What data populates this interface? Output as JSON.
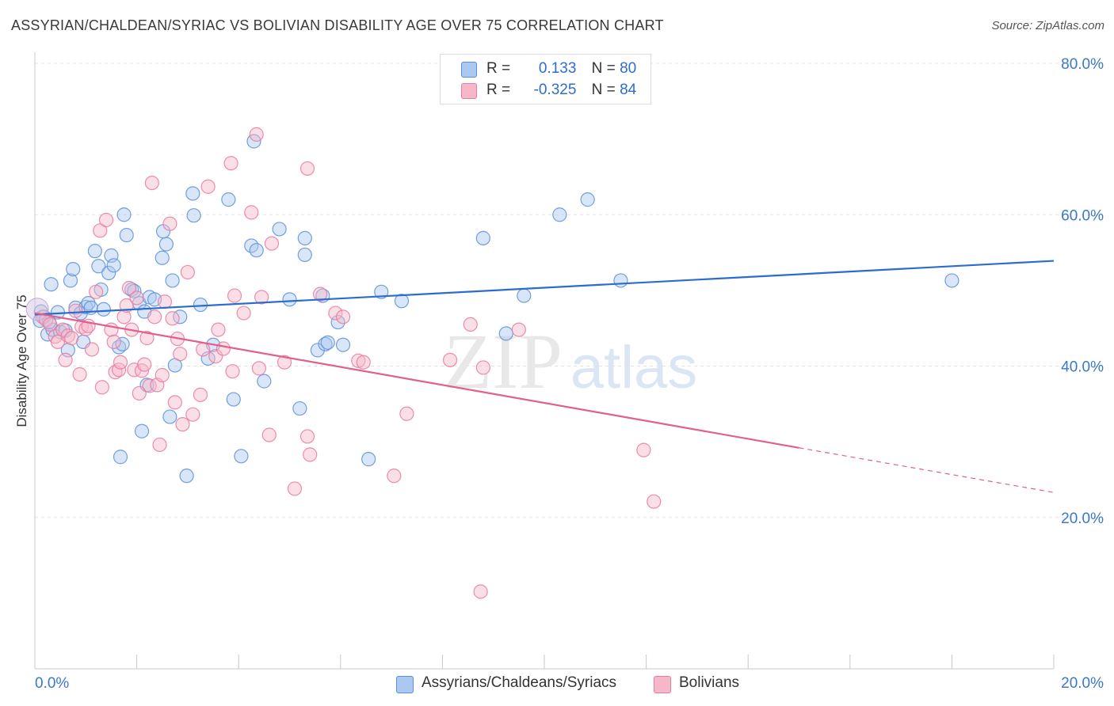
{
  "header": {
    "title": "ASSYRIAN/CHALDEAN/SYRIAC VS BOLIVIAN DISABILITY AGE OVER 75 CORRELATION CHART",
    "source": "Source: ZipAtlas.com"
  },
  "watermark": {
    "zip": "ZIP",
    "atlas": "atlas"
  },
  "stats": {
    "rows": [
      {
        "r_label": "R =",
        "r_value": "0.133",
        "n_label": "N =",
        "n_value": "80",
        "color": "#aac8f0"
      },
      {
        "r_label": "R =",
        "r_value": "-0.325",
        "n_label": "N =",
        "n_value": "84",
        "color": "#f6b7c8"
      }
    ]
  },
  "legend": {
    "items": [
      {
        "label": "Assyrians/Chaldeans/Syriacs",
        "color": "#aac8f0"
      },
      {
        "label": "Bolivians",
        "color": "#f6b7c8"
      }
    ]
  },
  "chart_data": {
    "type": "scatter",
    "xlabel": "",
    "ylabel": "Disability Age Over 75",
    "xlim": [
      0,
      20
    ],
    "ylim": [
      0,
      80
    ],
    "x_tick_labels": [
      "0.0%",
      "20.0%"
    ],
    "y_tick_labels": [
      "80.0%",
      "60.0%",
      "40.0%",
      "20.0%"
    ],
    "y_ticks": [
      80,
      60,
      40,
      20
    ],
    "grid": true,
    "series": [
      {
        "name": "Assyrians/Chaldeans/Syriacs",
        "color": "#5b8fd9",
        "fill": "#aac8f0",
        "line_color": "#2a6ccf",
        "trend": {
          "x": [
            0.0,
            20.0
          ],
          "y": [
            46.8,
            53.9
          ]
        },
        "points": [
          [
            0.12,
            47.2
          ],
          [
            0.18,
            46.5
          ],
          [
            0.25,
            44.2
          ],
          [
            0.32,
            50.8
          ],
          [
            0.35,
            44.8
          ],
          [
            0.45,
            47.1
          ],
          [
            0.5,
            44.5
          ],
          [
            0.6,
            44.7
          ],
          [
            0.65,
            42.1
          ],
          [
            0.7,
            51.3
          ],
          [
            0.75,
            52.8
          ],
          [
            0.8,
            47.7
          ],
          [
            0.9,
            47.0
          ],
          [
            0.95,
            43.2
          ],
          [
            1.0,
            47.8
          ],
          [
            1.05,
            48.3
          ],
          [
            1.1,
            47.7
          ],
          [
            1.18,
            55.2
          ],
          [
            1.25,
            53.2
          ],
          [
            1.3,
            50.1
          ],
          [
            1.35,
            47.5
          ],
          [
            1.45,
            52.3
          ],
          [
            1.5,
            54.6
          ],
          [
            1.55,
            53.3
          ],
          [
            1.65,
            42.5
          ],
          [
            1.68,
            28.0
          ],
          [
            1.72,
            42.9
          ],
          [
            1.75,
            60.0
          ],
          [
            1.8,
            57.3
          ],
          [
            1.9,
            50.1
          ],
          [
            1.95,
            49.9
          ],
          [
            2.05,
            48.3
          ],
          [
            2.1,
            31.4
          ],
          [
            2.15,
            47.2
          ],
          [
            2.2,
            37.5
          ],
          [
            2.25,
            49.1
          ],
          [
            2.35,
            48.8
          ],
          [
            2.5,
            54.3
          ],
          [
            2.52,
            57.8
          ],
          [
            2.58,
            56.1
          ],
          [
            2.65,
            33.3
          ],
          [
            2.7,
            51.3
          ],
          [
            2.75,
            40.1
          ],
          [
            2.85,
            46.5
          ],
          [
            2.98,
            25.5
          ],
          [
            3.1,
            62.8
          ],
          [
            3.12,
            59.9
          ],
          [
            3.25,
            48.1
          ],
          [
            3.4,
            41.0
          ],
          [
            3.5,
            42.8
          ],
          [
            3.8,
            62.0
          ],
          [
            3.9,
            35.6
          ],
          [
            4.05,
            28.1
          ],
          [
            4.25,
            55.9
          ],
          [
            4.3,
            69.7
          ],
          [
            4.35,
            55.3
          ],
          [
            4.5,
            38.0
          ],
          [
            4.8,
            58.1
          ],
          [
            5.0,
            48.8
          ],
          [
            5.2,
            34.4
          ],
          [
            5.3,
            54.7
          ],
          [
            5.3,
            56.9
          ],
          [
            5.55,
            42.1
          ],
          [
            5.65,
            49.3
          ],
          [
            5.7,
            42.9
          ],
          [
            5.75,
            43.1
          ],
          [
            5.95,
            45.8
          ],
          [
            6.05,
            42.8
          ],
          [
            6.55,
            27.7
          ],
          [
            6.8,
            49.8
          ],
          [
            7.2,
            48.6
          ],
          [
            8.8,
            56.9
          ],
          [
            9.25,
            44.3
          ],
          [
            9.6,
            49.3
          ],
          [
            10.3,
            60.0
          ],
          [
            10.85,
            62.0
          ],
          [
            11.5,
            51.3
          ],
          [
            18.0,
            51.3
          ],
          [
            0.1,
            46.0
          ],
          [
            0.28,
            45.8
          ]
        ]
      },
      {
        "name": "Bolivians",
        "color": "#e87aa0",
        "fill": "#f6b7c8",
        "line_color": "#e0608c",
        "trend": {
          "x": [
            0.0,
            15.0
          ],
          "y": [
            47.0,
            29.2
          ]
        },
        "trend_dashed": {
          "x": [
            15.0,
            20.0
          ],
          "y": [
            29.2,
            23.3
          ]
        },
        "points": [
          [
            0.15,
            46.5
          ],
          [
            0.22,
            46.1
          ],
          [
            0.3,
            45.5
          ],
          [
            0.4,
            43.9
          ],
          [
            0.45,
            43.2
          ],
          [
            0.55,
            44.8
          ],
          [
            0.6,
            40.8
          ],
          [
            0.65,
            44.0
          ],
          [
            0.72,
            43.7
          ],
          [
            0.8,
            47.3
          ],
          [
            0.88,
            38.9
          ],
          [
            0.92,
            45.2
          ],
          [
            1.0,
            44.9
          ],
          [
            1.05,
            45.3
          ],
          [
            1.12,
            42.2
          ],
          [
            1.2,
            49.8
          ],
          [
            1.28,
            57.9
          ],
          [
            1.32,
            37.2
          ],
          [
            1.4,
            59.3
          ],
          [
            1.5,
            44.8
          ],
          [
            1.55,
            43.2
          ],
          [
            1.58,
            39.2
          ],
          [
            1.65,
            39.5
          ],
          [
            1.68,
            40.5
          ],
          [
            1.75,
            46.5
          ],
          [
            1.8,
            48.0
          ],
          [
            1.85,
            50.3
          ],
          [
            1.9,
            44.8
          ],
          [
            1.95,
            39.5
          ],
          [
            2.0,
            49.0
          ],
          [
            2.05,
            36.4
          ],
          [
            2.1,
            39.4
          ],
          [
            2.15,
            40.2
          ],
          [
            2.2,
            43.7
          ],
          [
            2.25,
            37.4
          ],
          [
            2.3,
            64.2
          ],
          [
            2.35,
            46.5
          ],
          [
            2.4,
            37.5
          ],
          [
            2.45,
            29.6
          ],
          [
            2.5,
            38.8
          ],
          [
            2.55,
            48.5
          ],
          [
            2.65,
            58.8
          ],
          [
            2.7,
            46.3
          ],
          [
            2.75,
            35.2
          ],
          [
            2.8,
            43.6
          ],
          [
            2.85,
            41.6
          ],
          [
            2.9,
            32.3
          ],
          [
            3.0,
            52.4
          ],
          [
            3.1,
            33.6
          ],
          [
            3.25,
            36.2
          ],
          [
            3.3,
            42.2
          ],
          [
            3.4,
            63.7
          ],
          [
            3.55,
            41.3
          ],
          [
            3.6,
            44.8
          ],
          [
            3.7,
            42.3
          ],
          [
            3.85,
            66.8
          ],
          [
            3.88,
            39.3
          ],
          [
            3.92,
            49.3
          ],
          [
            4.1,
            47.0
          ],
          [
            4.25,
            60.3
          ],
          [
            4.35,
            70.6
          ],
          [
            4.4,
            39.7
          ],
          [
            4.45,
            49.1
          ],
          [
            4.6,
            30.9
          ],
          [
            4.65,
            56.2
          ],
          [
            4.9,
            40.5
          ],
          [
            5.1,
            23.8
          ],
          [
            5.35,
            66.1
          ],
          [
            5.35,
            30.7
          ],
          [
            5.4,
            28.3
          ],
          [
            5.6,
            49.5
          ],
          [
            5.9,
            47.0
          ],
          [
            6.05,
            46.5
          ],
          [
            6.35,
            40.7
          ],
          [
            6.45,
            40.5
          ],
          [
            7.05,
            25.5
          ],
          [
            7.3,
            33.7
          ],
          [
            8.15,
            40.8
          ],
          [
            8.55,
            45.5
          ],
          [
            8.75,
            10.2
          ],
          [
            8.8,
            39.8
          ],
          [
            9.5,
            44.8
          ],
          [
            11.95,
            28.9
          ],
          [
            12.15,
            22.1
          ]
        ]
      }
    ]
  }
}
